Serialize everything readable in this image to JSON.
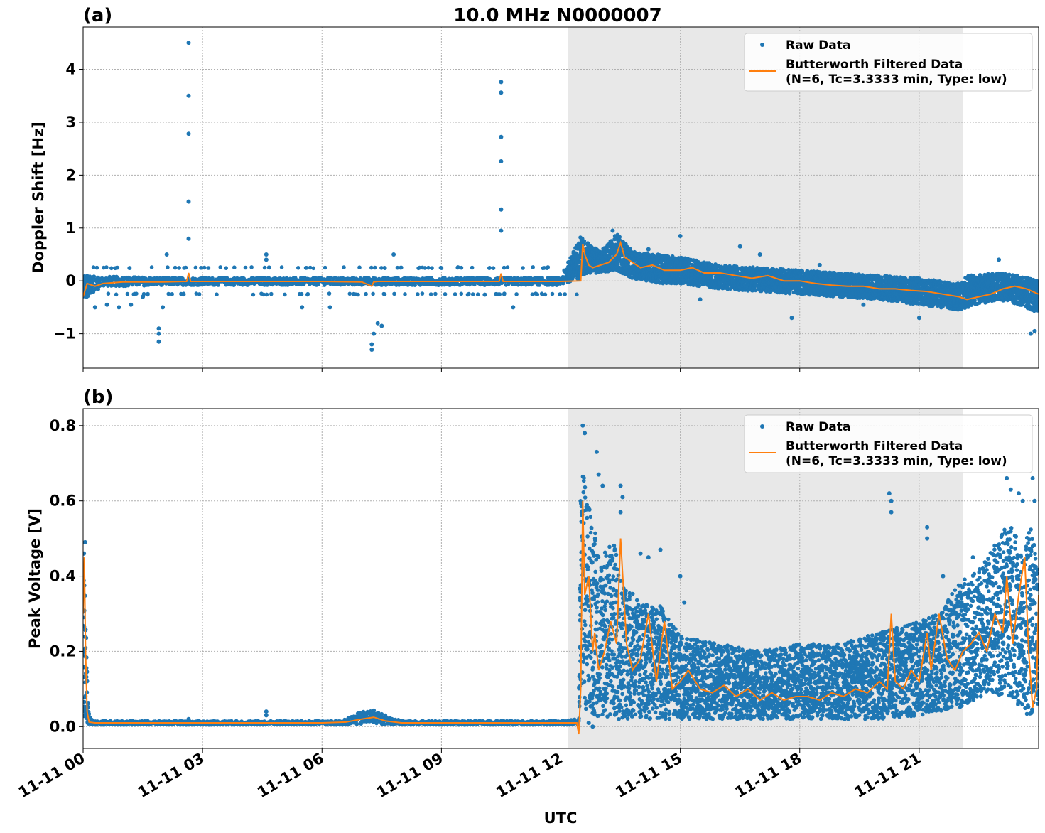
{
  "title": "10.0 MHz N0000007",
  "xlabel": "UTC",
  "colors": {
    "raw": "#1f77b4",
    "filtered": "#ff7f0e",
    "shade": "#e8e8e8",
    "grid": "#b0b0b0"
  },
  "legend": {
    "raw_label": "Raw Data",
    "filtered_label_line1": "Butterworth Filtered Data",
    "filtered_label_line2": "(N=6, Tc=3.3333 min, Type: low)",
    "placement": "upper right"
  },
  "chart_data": [
    {
      "panel_label": "(a)",
      "type": "scatter",
      "ylabel": "Doppler Shift [Hz]",
      "xlim": [
        0,
        24
      ],
      "ylim": [
        -1.65,
        4.8
      ],
      "yticks": [
        -1,
        0,
        1,
        2,
        3,
        4
      ],
      "ytick_labels": [
        "−1",
        "0",
        "1",
        "2",
        "3",
        "4"
      ],
      "xticks": [
        0,
        3,
        6,
        9,
        12,
        15,
        18,
        21
      ],
      "grid": true,
      "shaded_interval_hours": [
        12.17,
        22.1
      ],
      "series": [
        {
          "name": "Raw Data",
          "kind": "scatter-band",
          "band_x": [
            0,
            0.5,
            1,
            2,
            4,
            6,
            8,
            10,
            12,
            12.5,
            12.7,
            13,
            13.4,
            13.8,
            14.5,
            15,
            16,
            17,
            18,
            19,
            20,
            21,
            22,
            22.2,
            23,
            23.5,
            24
          ],
          "band_low": [
            -0.35,
            -0.1,
            -0.1,
            -0.08,
            -0.08,
            -0.08,
            -0.08,
            -0.08,
            -0.08,
            0.05,
            0.15,
            0.15,
            0.2,
            0.05,
            -0.05,
            -0.05,
            -0.15,
            -0.2,
            -0.25,
            -0.3,
            -0.35,
            -0.45,
            -0.55,
            -0.5,
            -0.35,
            -0.45,
            -0.6
          ],
          "band_high": [
            0.1,
            0.08,
            0.08,
            0.06,
            0.06,
            0.06,
            0.06,
            0.06,
            0.06,
            0.85,
            0.7,
            0.55,
            0.9,
            0.55,
            0.5,
            0.45,
            0.3,
            0.25,
            0.2,
            0.15,
            0.1,
            0.05,
            -0.05,
            0.1,
            0.15,
            0.1,
            0.0
          ],
          "outliers": [
            [
              2.65,
              4.5
            ],
            [
              2.65,
              3.5
            ],
            [
              2.65,
              2.78
            ],
            [
              2.65,
              1.5
            ],
            [
              2.65,
              0.8
            ],
            [
              10.5,
              3.76
            ],
            [
              10.5,
              3.56
            ],
            [
              10.5,
              2.72
            ],
            [
              10.5,
              2.26
            ],
            [
              10.5,
              1.35
            ],
            [
              10.5,
              0.95
            ],
            [
              1.9,
              -0.9
            ],
            [
              1.9,
              -1.15
            ],
            [
              1.9,
              -1.0
            ],
            [
              7.25,
              -1.3
            ],
            [
              7.25,
              -1.2
            ],
            [
              7.3,
              -1.0
            ],
            [
              7.4,
              -0.8
            ],
            [
              7.5,
              -0.85
            ],
            [
              0.3,
              -0.5
            ],
            [
              0.6,
              -0.45
            ],
            [
              0.9,
              -0.5
            ],
            [
              1.2,
              -0.45
            ],
            [
              1.5,
              -0.3
            ],
            [
              2.0,
              -0.5
            ],
            [
              2.1,
              0.5
            ],
            [
              4.6,
              0.5
            ],
            [
              4.6,
              0.4
            ],
            [
              7.8,
              0.5
            ],
            [
              5.5,
              -0.5
            ],
            [
              6.2,
              -0.5
            ],
            [
              6.8,
              -0.25
            ],
            [
              10.8,
              -0.5
            ],
            [
              13.3,
              0.95
            ],
            [
              14.2,
              0.6
            ],
            [
              15.0,
              0.85
            ],
            [
              16.5,
              0.65
            ],
            [
              17.0,
              0.5
            ],
            [
              18.5,
              0.3
            ],
            [
              23.0,
              0.4
            ],
            [
              23.8,
              -1.0
            ],
            [
              23.9,
              -0.95
            ],
            [
              17.8,
              -0.7
            ],
            [
              15.5,
              -0.35
            ],
            [
              19.6,
              -0.45
            ],
            [
              21.0,
              -0.7
            ]
          ],
          "sparse_levels": [
            -0.25,
            0.25
          ],
          "sparse_range_hours": [
            0,
            12.5
          ]
        },
        {
          "name": "Butterworth Filtered Data (N=6, Tc=3.3333 min, Type: low)",
          "kind": "line",
          "x": [
            0,
            0.1,
            0.3,
            0.5,
            1,
            2,
            2.6,
            2.65,
            2.7,
            3,
            4,
            5,
            6,
            7,
            7.25,
            7.3,
            7.4,
            8,
            9,
            10,
            10.45,
            10.5,
            10.55,
            11,
            12,
            12.5,
            12.55,
            12.6,
            12.7,
            12.8,
            13,
            13.2,
            13.4,
            13.5,
            13.6,
            13.8,
            14,
            14.3,
            14.6,
            15,
            15.3,
            15.6,
            16,
            16.4,
            16.8,
            17.2,
            17.6,
            18,
            18.4,
            18.8,
            19.2,
            19.6,
            20,
            20.4,
            20.8,
            21.2,
            21.6,
            22,
            22.2,
            22.5,
            22.8,
            23.1,
            23.4,
            23.7,
            24
          ],
          "y": [
            -0.3,
            -0.05,
            -0.1,
            -0.05,
            -0.02,
            -0.02,
            -0.01,
            0.15,
            -0.01,
            -0.01,
            -0.01,
            -0.01,
            -0.01,
            -0.02,
            -0.1,
            -0.02,
            -0.01,
            -0.01,
            -0.01,
            -0.01,
            -0.01,
            0.14,
            -0.01,
            -0.01,
            -0.01,
            0.0,
            0.7,
            0.5,
            0.3,
            0.25,
            0.3,
            0.35,
            0.5,
            0.72,
            0.45,
            0.35,
            0.25,
            0.3,
            0.2,
            0.2,
            0.25,
            0.15,
            0.15,
            0.1,
            0.05,
            0.1,
            0.0,
            0.0,
            -0.05,
            -0.08,
            -0.1,
            -0.1,
            -0.15,
            -0.15,
            -0.18,
            -0.2,
            -0.25,
            -0.3,
            -0.35,
            -0.3,
            -0.25,
            -0.15,
            -0.1,
            -0.15,
            -0.25
          ]
        }
      ]
    },
    {
      "panel_label": "(b)",
      "type": "scatter",
      "ylabel": "Peak Voltage [V]",
      "xlim": [
        0,
        24
      ],
      "ylim": [
        -0.058,
        0.845
      ],
      "yticks": [
        0.0,
        0.2,
        0.4,
        0.6,
        0.8
      ],
      "ytick_labels": [
        "0.0",
        "0.2",
        "0.4",
        "0.6",
        "0.8"
      ],
      "xticks": [
        0,
        3,
        6,
        9,
        12,
        15,
        18,
        21
      ],
      "xtick_labels": [
        "11-11 00",
        "11-11 03",
        "11-11 06",
        "11-11 09",
        "11-11 12",
        "11-11 15",
        "11-11 18",
        "11-11 21"
      ],
      "grid": true,
      "shaded_interval_hours": [
        12.17,
        22.1
      ],
      "series": [
        {
          "name": "Raw Data",
          "kind": "scatter-band",
          "band_x": [
            0,
            0.05,
            0.1,
            0.15,
            0.3,
            1,
            6.5,
            7,
            7.3,
            7.6,
            8,
            12,
            12.45,
            12.5,
            12.6,
            12.8,
            13,
            13.3,
            13.6,
            14,
            14.5,
            15,
            16,
            17,
            18,
            19,
            20,
            21,
            21.5,
            22,
            22.5,
            23,
            23.3,
            23.6,
            23.8,
            24
          ],
          "band_low": [
            0.02,
            0.02,
            0.01,
            0.005,
            0.005,
            0.005,
            0.005,
            0.005,
            0.01,
            0.005,
            0.005,
            0.005,
            0.005,
            0.1,
            0.05,
            0.03,
            0.02,
            0.02,
            0.02,
            0.02,
            0.02,
            0.02,
            0.02,
            0.02,
            0.02,
            0.02,
            0.02,
            0.03,
            0.04,
            0.05,
            0.07,
            0.08,
            0.08,
            0.03,
            0.03,
            0.05
          ],
          "band_high": [
            0.45,
            0.35,
            0.15,
            0.03,
            0.015,
            0.015,
            0.015,
            0.04,
            0.045,
            0.03,
            0.015,
            0.015,
            0.02,
            0.75,
            0.65,
            0.55,
            0.45,
            0.5,
            0.38,
            0.33,
            0.32,
            0.24,
            0.22,
            0.2,
            0.22,
            0.22,
            0.25,
            0.28,
            0.3,
            0.38,
            0.42,
            0.5,
            0.55,
            0.45,
            0.55,
            0.4
          ],
          "outliers": [
            [
              0.05,
              0.49
            ],
            [
              0.02,
              0.46
            ],
            [
              2.65,
              0.02
            ],
            [
              4.6,
              0.04
            ],
            [
              4.6,
              0.03
            ],
            [
              12.55,
              0.8
            ],
            [
              12.6,
              0.78
            ],
            [
              12.9,
              0.73
            ],
            [
              12.95,
              0.67
            ],
            [
              13.05,
              0.64
            ],
            [
              13.5,
              0.64
            ],
            [
              13.55,
              0.61
            ],
            [
              13.5,
              0.57
            ],
            [
              14.0,
              0.46
            ],
            [
              14.2,
              0.45
            ],
            [
              14.5,
              0.47
            ],
            [
              15.0,
              0.4
            ],
            [
              15.1,
              0.33
            ],
            [
              20.25,
              0.62
            ],
            [
              20.3,
              0.6
            ],
            [
              20.3,
              0.57
            ],
            [
              21.2,
              0.53
            ],
            [
              21.2,
              0.5
            ],
            [
              21.6,
              0.4
            ],
            [
              22.35,
              0.45
            ],
            [
              22.6,
              0.42
            ],
            [
              23.2,
              0.66
            ],
            [
              23.3,
              0.63
            ],
            [
              23.5,
              0.62
            ],
            [
              23.6,
              0.6
            ],
            [
              23.85,
              0.66
            ],
            [
              23.9,
              0.6
            ],
            [
              22.9,
              0.42
            ],
            [
              12.8,
              0.0
            ],
            [
              12.7,
              0.01
            ]
          ],
          "sparse_levels": [],
          "sparse_range_hours": [
            0,
            0
          ]
        },
        {
          "name": "Butterworth Filtered Data (N=6, Tc=3.3333 min, Type: low)",
          "kind": "line",
          "x": [
            0,
            0.03,
            0.06,
            0.1,
            0.15,
            0.3,
            1,
            2,
            4,
            6,
            6.6,
            7,
            7.3,
            7.6,
            8,
            10,
            12,
            12.4,
            12.45,
            12.5,
            12.55,
            12.6,
            12.7,
            12.8,
            12.85,
            12.95,
            13.1,
            13.25,
            13.4,
            13.5,
            13.65,
            13.8,
            14,
            14.2,
            14.4,
            14.6,
            14.8,
            15.0,
            15.2,
            15.5,
            15.8,
            16.1,
            16.4,
            16.7,
            17.0,
            17.3,
            17.6,
            17.9,
            18.2,
            18.5,
            18.8,
            19.1,
            19.4,
            19.7,
            20.0,
            20.2,
            20.3,
            20.4,
            20.6,
            20.8,
            21.0,
            21.2,
            21.3,
            21.5,
            21.7,
            21.9,
            22.1,
            22.3,
            22.5,
            22.7,
            22.9,
            23.1,
            23.2,
            23.35,
            23.5,
            23.65,
            23.75,
            23.85,
            23.95,
            24
          ],
          "y": [
            0.3,
            0.45,
            0.2,
            0.04,
            0.012,
            0.01,
            0.01,
            0.01,
            0.01,
            0.01,
            0.012,
            0.02,
            0.025,
            0.015,
            0.01,
            0.01,
            0.01,
            0.01,
            -0.02,
            0.1,
            0.6,
            0.35,
            0.4,
            0.2,
            0.25,
            0.15,
            0.2,
            0.28,
            0.22,
            0.5,
            0.22,
            0.15,
            0.18,
            0.3,
            0.12,
            0.28,
            0.1,
            0.12,
            0.15,
            0.1,
            0.09,
            0.11,
            0.08,
            0.1,
            0.07,
            0.09,
            0.07,
            0.08,
            0.08,
            0.07,
            0.09,
            0.08,
            0.1,
            0.09,
            0.12,
            0.1,
            0.3,
            0.12,
            0.1,
            0.15,
            0.12,
            0.25,
            0.15,
            0.3,
            0.18,
            0.15,
            0.2,
            0.22,
            0.25,
            0.2,
            0.3,
            0.25,
            0.4,
            0.22,
            0.35,
            0.45,
            0.2,
            0.05,
            0.1,
            0.35
          ]
        }
      ]
    }
  ]
}
